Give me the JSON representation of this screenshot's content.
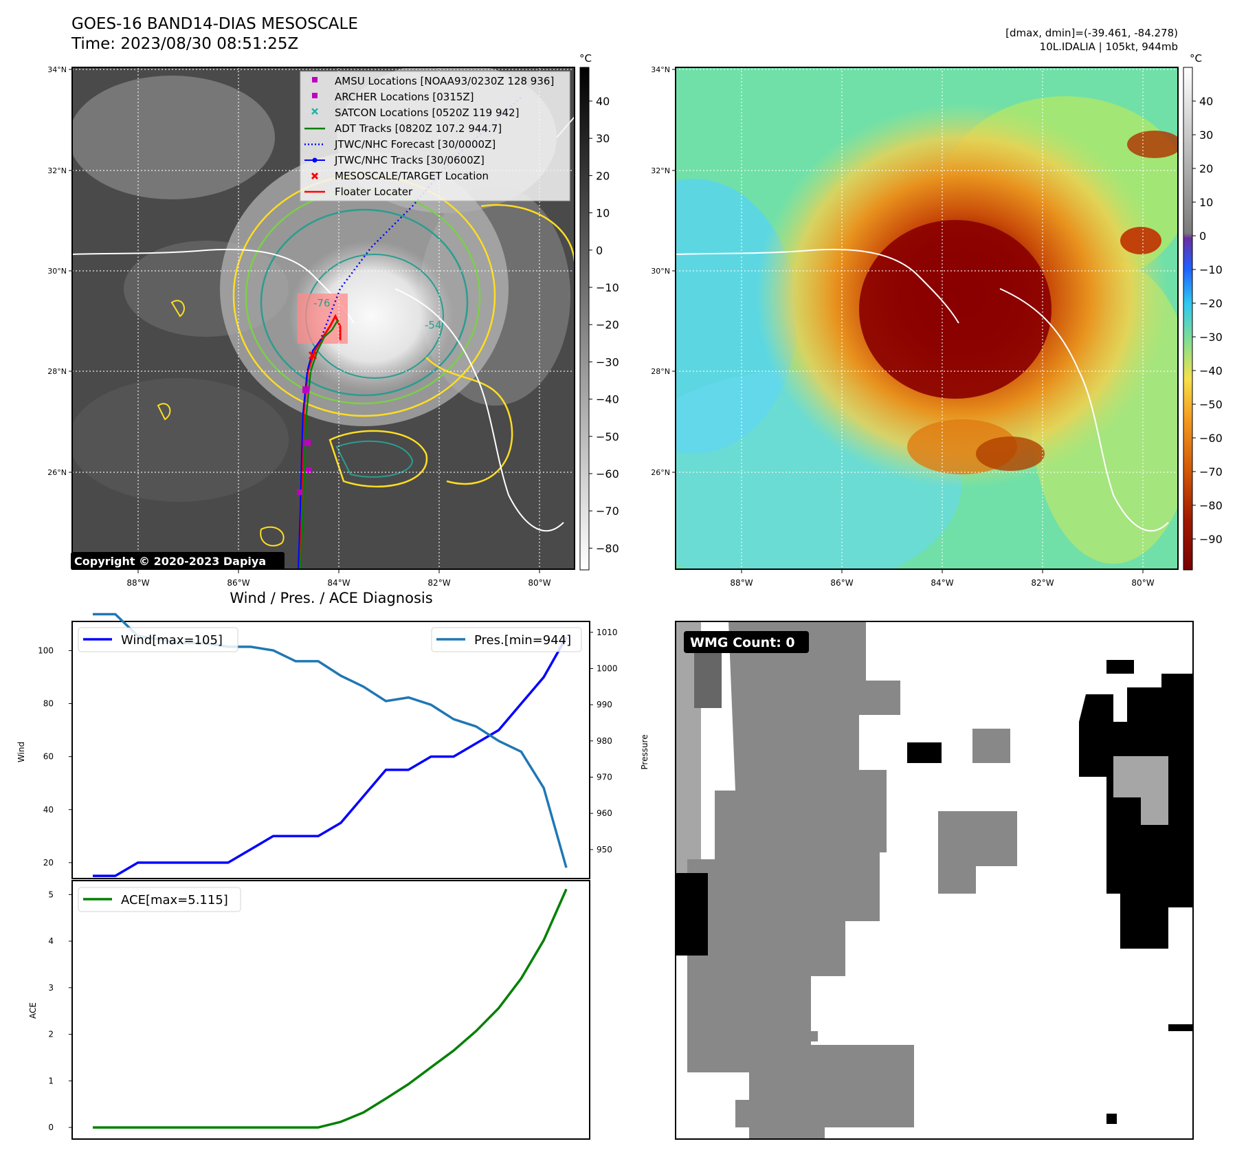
{
  "header": {
    "title_line1": "GOES-16 BAND14-DIAS MESOSCALE",
    "title_line2": "Time: 2023/08/30 08:51:25Z",
    "dminmax": "[dmax, dmin]=(-39.461, -84.278)",
    "storm_info": "10L.IDALIA | 105kt, 944mb"
  },
  "colors": {
    "wind": "#0000ff",
    "pressure": "#1f77b4",
    "ace": "#008000",
    "adt": "#008000",
    "jtwc": "#0000ff",
    "amsu": "#c000c0",
    "satcon": "#20b2aa",
    "target": "#ff0000",
    "contour_yellow": "#ffdd22",
    "contour_green": "#7ccf4a",
    "contour_teal": "#2a9d8f"
  },
  "map_left": {
    "lat_ticks": [
      "34°N",
      "32°N",
      "30°N",
      "28°N",
      "26°N"
    ],
    "lon_ticks": [
      "88°W",
      "86°W",
      "84°W",
      "82°W",
      "80°W"
    ],
    "copyright": "Copyright © 2020-2023 Dapiya",
    "colorbar_unit": "°C",
    "colorbar_ticks": [
      "40",
      "30",
      "20",
      "10",
      "0",
      "−10",
      "−20",
      "−30",
      "−40",
      "−50",
      "−60",
      "−70",
      "−80"
    ],
    "legend": [
      {
        "label": "AMSU Locations [NOAA93/0230Z 128 936]",
        "icon": "square-marker-icon",
        "color": "#c000c0"
      },
      {
        "label": "ARCHER Locations [0315Z]",
        "icon": "square-marker-icon",
        "color": "#c000c0"
      },
      {
        "label": "SATCON Locations [0520Z 119 942]",
        "icon": "x-marker-icon",
        "color": "#20b2aa"
      },
      {
        "label": "ADT Tracks [0820Z 107.2 944.7]",
        "icon": "line-icon",
        "color": "#008000"
      },
      {
        "label": "JTWC/NHC Forecast [30/0000Z]",
        "icon": "dotted-line-icon",
        "color": "#0000ff"
      },
      {
        "label": "JTWC/NHC Tracks [30/0600Z]",
        "icon": "dot-line-icon",
        "color": "#0000ff"
      },
      {
        "label": "MESOSCALE/TARGET Location",
        "icon": "x-marker-icon",
        "color": "#ff0000"
      },
      {
        "label": "Floater Locater",
        "icon": "line-icon",
        "color": "#ff0000"
      }
    ],
    "contour_labels": [
      "-54",
      "-76"
    ]
  },
  "map_right": {
    "lat_ticks": [
      "34°N",
      "32°N",
      "30°N",
      "28°N",
      "26°N"
    ],
    "lon_ticks": [
      "88°W",
      "86°W",
      "84°W",
      "82°W",
      "80°W"
    ],
    "colorbar_unit": "°C",
    "colorbar_ticks": [
      "40",
      "30",
      "20",
      "10",
      "0",
      "−10",
      "−20",
      "−30",
      "−40",
      "−50",
      "−60",
      "−70",
      "−80",
      "−90"
    ]
  },
  "wmg": {
    "label": "WMG Count: 0"
  },
  "chart_data": [
    {
      "type": "line",
      "title": "Wind / Pres. / ACE Diagnosis",
      "ylabel": "Wind",
      "y2label": "Pressure",
      "ylim": [
        14,
        111
      ],
      "y2lim": [
        942,
        1013
      ],
      "yticks": [
        20,
        40,
        60,
        80,
        100
      ],
      "y2ticks": [
        950,
        960,
        970,
        980,
        990,
        1000,
        1010
      ],
      "series": [
        {
          "name": "Wind[max=105]",
          "axis": "left",
          "values": [
            15,
            15,
            20,
            20,
            20,
            20,
            20,
            25,
            30,
            30,
            30,
            35,
            45,
            55,
            55,
            60,
            60,
            65,
            70,
            80,
            90,
            105
          ]
        },
        {
          "name": "Pres.[min=944]",
          "axis": "right",
          "values": [
            1015,
            1015,
            1009,
            1008,
            1007,
            1007,
            1006,
            1006,
            1005,
            1002,
            1002,
            998,
            995,
            991,
            992,
            990,
            986,
            984,
            980,
            977,
            967,
            945
          ]
        }
      ]
    },
    {
      "type": "line",
      "ylabel": "ACE",
      "ylim": [
        -0.25,
        5.3
      ],
      "yticks": [
        0,
        1,
        2,
        3,
        4,
        5
      ],
      "series": [
        {
          "name": "ACE[max=5.115]",
          "values": [
            0,
            0,
            0,
            0,
            0,
            0,
            0,
            0,
            0,
            0,
            0,
            0.12,
            0.32,
            0.62,
            0.93,
            1.29,
            1.65,
            2.07,
            2.56,
            3.2,
            4.02,
            5.115
          ]
        }
      ]
    }
  ]
}
